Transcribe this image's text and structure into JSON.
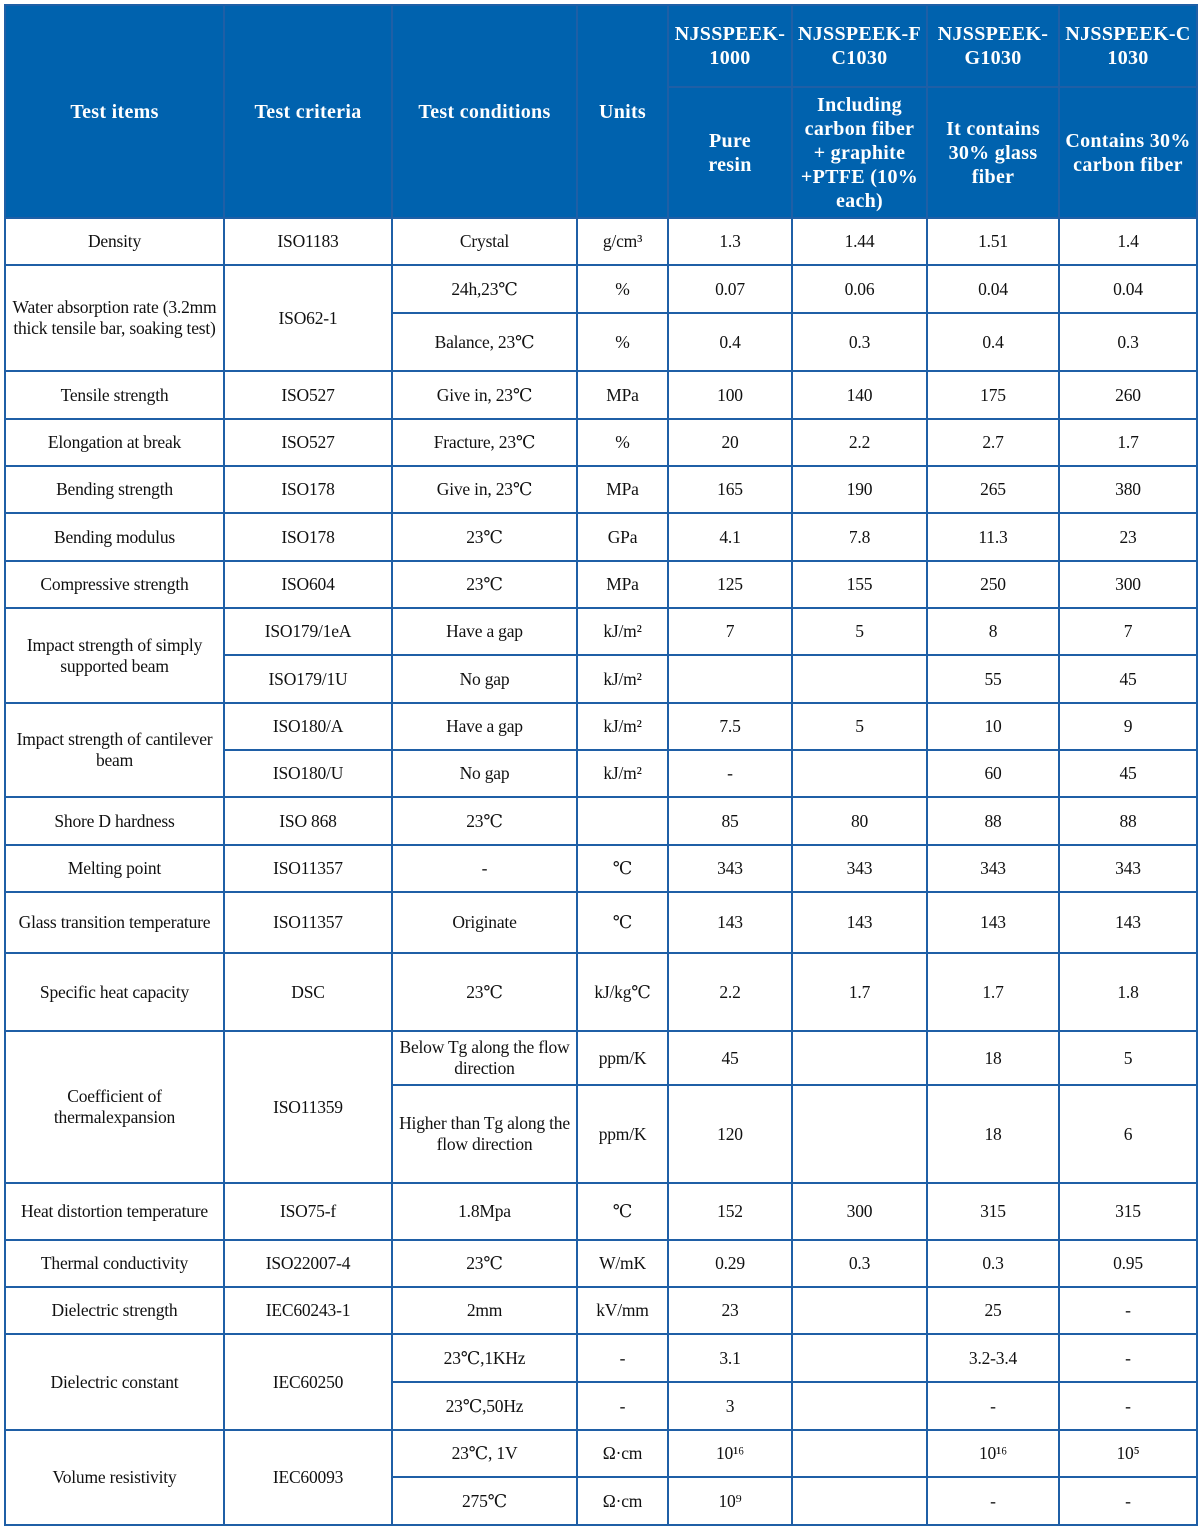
{
  "colors": {
    "header_bg": "#0062ae",
    "border": "#1f5fa6",
    "header_text": "#ffffff"
  },
  "header": {
    "test_items": "Test items",
    "test_criteria": "Test criteria",
    "test_conditions": "Test conditions",
    "units": "Units",
    "grades": [
      {
        "name": "NJSSPEEK-1000",
        "desc": "Pure resin"
      },
      {
        "name": "NJSSPEEK-FC1030",
        "desc": "Including carbon fiber + graphite +PTFE (10% each)"
      },
      {
        "name": "NJSSPEEK-G1030",
        "desc": "It contains 30% glass fiber"
      },
      {
        "name": "NJSSPEEK-C1030",
        "desc": "Contains 30% carbon fiber"
      }
    ]
  },
  "table": {
    "rows": [
      {
        "h": 47,
        "cells": [
          "Density",
          "ISO1183",
          "Crystal",
          "g/cm³",
          "1.3",
          "1.44",
          "1.51",
          "1.4"
        ]
      },
      {
        "h": 48,
        "cells": [
          {
            "t": "Water absorption rate (3.2mm thick tensile bar, soaking test)",
            "rs": 2
          },
          {
            "t": "ISO62-1",
            "rs": 2
          },
          "24h,23℃",
          "%",
          "0.07",
          "0.06",
          "0.04",
          "0.04"
        ]
      },
      {
        "h": 58,
        "cells": [
          "Balance, 23℃",
          "%",
          "0.4",
          "0.3",
          "0.4",
          "0.3"
        ]
      },
      {
        "h": 48,
        "cells": [
          "Tensile strength",
          "ISO527",
          "Give in, 23℃",
          "MPa",
          "100",
          "140",
          "175",
          "260"
        ]
      },
      {
        "h": 47,
        "cells": [
          "Elongation at break",
          "ISO527",
          "Fracture, 23℃",
          "%",
          "20",
          "2.2",
          "2.7",
          "1.7"
        ]
      },
      {
        "h": 47,
        "cells": [
          "Bending strength",
          "ISO178",
          "Give in, 23℃",
          "MPa",
          "165",
          "190",
          "265",
          "380"
        ]
      },
      {
        "h": 48,
        "cells": [
          "Bending modulus",
          "ISO178",
          "23℃",
          "GPa",
          "4.1",
          "7.8",
          "11.3",
          "23"
        ]
      },
      {
        "h": 47,
        "cells": [
          "Compressive strength",
          "ISO604",
          "23℃",
          "MPa",
          "125",
          "155",
          "250",
          "300"
        ]
      },
      {
        "h": 47,
        "cells": [
          {
            "t": "Impact strength of simply supported beam",
            "rs": 2
          },
          "ISO179/1eA",
          "Have a gap",
          "kJ/m²",
          "7",
          "5",
          "8",
          "7"
        ]
      },
      {
        "h": 48,
        "cells": [
          "ISO179/1U",
          "No gap",
          "kJ/m²",
          "",
          "",
          "55",
          "45"
        ]
      },
      {
        "h": 47,
        "cells": [
          {
            "t": "Impact strength of cantilever beam",
            "rs": 2
          },
          "ISO180/A",
          "Have a gap",
          "kJ/m²",
          "7.5",
          "5",
          "10",
          "9"
        ]
      },
      {
        "h": 47,
        "cells": [
          "ISO180/U",
          "No gap",
          "kJ/m²",
          "-",
          "",
          "60",
          "45"
        ]
      },
      {
        "h": 48,
        "cells": [
          "Shore D hardness",
          "ISO 868",
          "23℃",
          "",
          "85",
          "80",
          "88",
          "88"
        ]
      },
      {
        "h": 47,
        "cells": [
          "Melting point",
          "ISO11357",
          "-",
          "℃",
          "343",
          "343",
          "343",
          "343"
        ]
      },
      {
        "h": 61,
        "cells": [
          "Glass transition temperature",
          "ISO11357",
          "Originate",
          "℃",
          "143",
          "143",
          "143",
          "143"
        ]
      },
      {
        "h": 78,
        "cells": [
          "Specific heat capacity",
          "DSC",
          "23℃",
          "kJ/kg℃",
          "2.2",
          "1.7",
          "1.7",
          "1.8"
        ]
      },
      {
        "h": 54,
        "cells": [
          {
            "t": "Coefficient of thermalexpansion",
            "rs": 2
          },
          {
            "t": "ISO11359",
            "rs": 2
          },
          "Below Tg along the flow direction",
          "ppm/K",
          "45",
          "",
          "18",
          "5"
        ]
      },
      {
        "h": 98,
        "cells": [
          "Higher than Tg along the flow direction",
          "ppm/K",
          "120",
          "",
          "18",
          "6"
        ]
      },
      {
        "h": 57,
        "cells": [
          "Heat distortion temperature",
          "ISO75-f",
          "1.8Mpa",
          "℃",
          "152",
          "300",
          "315",
          "315"
        ]
      },
      {
        "h": 47,
        "cells": [
          "Thermal conductivity",
          "ISO22007-4",
          "23℃",
          "W/mK",
          "0.29",
          "0.3",
          "0.3",
          "0.95"
        ]
      },
      {
        "h": 47,
        "cells": [
          "Dielectric strength",
          "IEC60243-1",
          "2mm",
          "kV/mm",
          "23",
          "",
          "25",
          "-"
        ]
      },
      {
        "h": 48,
        "cells": [
          {
            "t": "Dielectric constant",
            "rs": 2
          },
          {
            "t": "IEC60250",
            "rs": 2
          },
          "23℃,1KHz",
          "-",
          "3.1",
          "",
          "3.2-3.4",
          "-"
        ]
      },
      {
        "h": 48,
        "cells": [
          "23℃,50Hz",
          "-",
          "3",
          "",
          "-",
          "-"
        ]
      },
      {
        "h": 47,
        "cells": [
          {
            "t": "Volume resistivity",
            "rs": 2
          },
          {
            "t": "IEC60093",
            "rs": 2
          },
          "23℃, 1V",
          "Ω·cm",
          "10¹⁶",
          "",
          "10¹⁶",
          "10⁵"
        ]
      },
      {
        "h": 48,
        "cells": [
          "275℃",
          "Ω·cm",
          "10⁹",
          "",
          "-",
          "-"
        ]
      }
    ]
  }
}
